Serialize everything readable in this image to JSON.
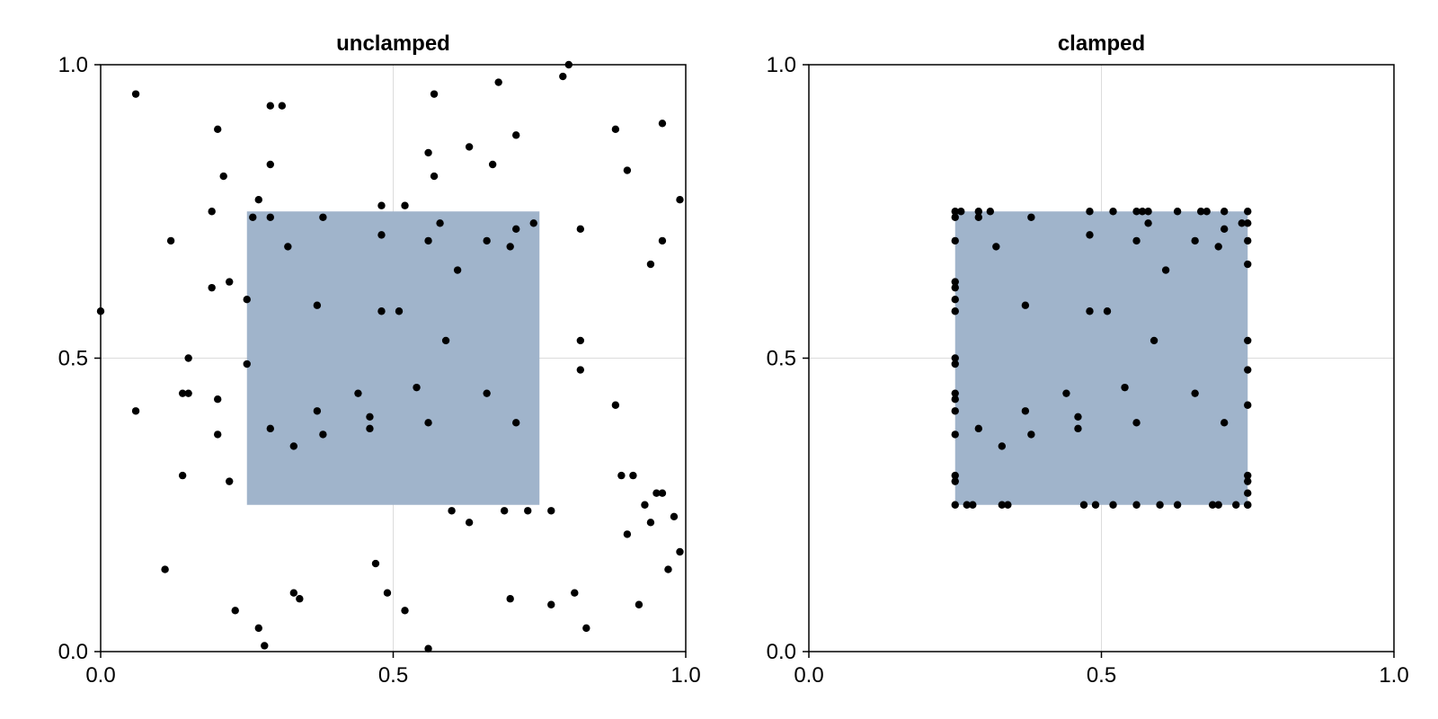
{
  "chart_data": [
    {
      "type": "scatter",
      "title": "unclamped",
      "xlabel": "",
      "ylabel": "",
      "xlim": [
        0,
        1
      ],
      "ylim": [
        0,
        1
      ],
      "x_ticks": [
        "0.0",
        "0.5",
        "1.0"
      ],
      "y_ticks": [
        "0.0",
        "0.5",
        "1.0"
      ],
      "grid": true,
      "rect": {
        "x": [
          0.25,
          0.75
        ],
        "y": [
          0.25,
          0.75
        ],
        "color": "#a0b4cb"
      },
      "marker_color": "#000000",
      "points": [
        [
          0.0,
          0.58
        ],
        [
          0.06,
          0.95
        ],
        [
          0.06,
          0.41
        ],
        [
          0.11,
          0.14
        ],
        [
          0.12,
          0.7
        ],
        [
          0.14,
          0.3
        ],
        [
          0.14,
          0.44
        ],
        [
          0.15,
          0.44
        ],
        [
          0.15,
          0.5
        ],
        [
          0.19,
          0.62
        ],
        [
          0.19,
          0.75
        ],
        [
          0.2,
          0.37
        ],
        [
          0.2,
          0.43
        ],
        [
          0.2,
          0.89
        ],
        [
          0.21,
          0.81
        ],
        [
          0.22,
          0.63
        ],
        [
          0.22,
          0.29
        ],
        [
          0.23,
          0.07
        ],
        [
          0.25,
          0.6
        ],
        [
          0.25,
          0.49
        ],
        [
          0.26,
          0.74
        ],
        [
          0.27,
          0.77
        ],
        [
          0.27,
          0.04
        ],
        [
          0.28,
          0.01
        ],
        [
          0.29,
          0.93
        ],
        [
          0.29,
          0.83
        ],
        [
          0.29,
          0.74
        ],
        [
          0.29,
          0.38
        ],
        [
          0.31,
          0.93
        ],
        [
          0.32,
          0.69
        ],
        [
          0.33,
          0.35
        ],
        [
          0.33,
          0.1
        ],
        [
          0.34,
          0.09
        ],
        [
          0.37,
          0.59
        ],
        [
          0.37,
          0.41
        ],
        [
          0.38,
          0.74
        ],
        [
          0.38,
          0.37
        ],
        [
          0.44,
          0.44
        ],
        [
          0.46,
          0.4
        ],
        [
          0.46,
          0.38
        ],
        [
          0.47,
          0.15
        ],
        [
          0.48,
          0.76
        ],
        [
          0.48,
          0.71
        ],
        [
          0.48,
          0.58
        ],
        [
          0.49,
          0.1
        ],
        [
          0.51,
          0.58
        ],
        [
          0.52,
          0.76
        ],
        [
          0.52,
          0.07
        ],
        [
          0.54,
          0.45
        ],
        [
          0.56,
          0.85
        ],
        [
          0.56,
          0.7
        ],
        [
          0.56,
          0.39
        ],
        [
          0.56,
          0.005
        ],
        [
          0.57,
          0.81
        ],
        [
          0.57,
          0.95
        ],
        [
          0.58,
          0.73
        ],
        [
          0.59,
          0.53
        ],
        [
          0.6,
          0.24
        ],
        [
          0.61,
          0.65
        ],
        [
          0.63,
          0.86
        ],
        [
          0.63,
          0.22
        ],
        [
          0.66,
          0.7
        ],
        [
          0.66,
          0.44
        ],
        [
          0.67,
          0.83
        ],
        [
          0.68,
          0.97
        ],
        [
          0.69,
          0.24
        ],
        [
          0.7,
          0.09
        ],
        [
          0.7,
          0.69
        ],
        [
          0.71,
          0.72
        ],
        [
          0.71,
          0.39
        ],
        [
          0.71,
          0.88
        ],
        [
          0.73,
          0.24
        ],
        [
          0.74,
          0.73
        ],
        [
          0.77,
          0.08
        ],
        [
          0.77,
          0.24
        ],
        [
          0.79,
          0.98
        ],
        [
          0.8,
          1.0
        ],
        [
          0.81,
          0.1
        ],
        [
          0.82,
          0.53
        ],
        [
          0.82,
          0.48
        ],
        [
          0.82,
          0.72
        ],
        [
          0.83,
          0.04
        ],
        [
          0.88,
          0.89
        ],
        [
          0.88,
          0.42
        ],
        [
          0.89,
          0.3
        ],
        [
          0.9,
          0.82
        ],
        [
          0.9,
          0.2
        ],
        [
          0.91,
          0.3
        ],
        [
          0.92,
          0.08
        ],
        [
          0.93,
          0.25
        ],
        [
          0.94,
          0.66
        ],
        [
          0.94,
          0.22
        ],
        [
          0.95,
          0.27
        ],
        [
          0.96,
          0.27
        ],
        [
          0.96,
          0.7
        ],
        [
          0.96,
          0.9
        ],
        [
          0.97,
          0.14
        ],
        [
          0.98,
          0.23
        ],
        [
          0.99,
          0.77
        ],
        [
          0.99,
          0.17
        ]
      ]
    },
    {
      "type": "scatter",
      "title": "clamped",
      "xlabel": "",
      "ylabel": "",
      "xlim": [
        0,
        1
      ],
      "ylim": [
        0,
        1
      ],
      "x_ticks": [
        "0.0",
        "0.5",
        "1.0"
      ],
      "y_ticks": [
        "0.0",
        "0.5",
        "1.0"
      ],
      "grid": true,
      "rect": {
        "x": [
          0.25,
          0.75
        ],
        "y": [
          0.25,
          0.75
        ],
        "color": "#a0b4cb"
      },
      "marker_color": "#000000",
      "points": [
        [
          0.25,
          0.75
        ],
        [
          0.25,
          0.74
        ],
        [
          0.25,
          0.7
        ],
        [
          0.25,
          0.63
        ],
        [
          0.25,
          0.62
        ],
        [
          0.25,
          0.6
        ],
        [
          0.25,
          0.58
        ],
        [
          0.25,
          0.5
        ],
        [
          0.25,
          0.49
        ],
        [
          0.25,
          0.44
        ],
        [
          0.25,
          0.43
        ],
        [
          0.25,
          0.41
        ],
        [
          0.25,
          0.37
        ],
        [
          0.25,
          0.3
        ],
        [
          0.25,
          0.29
        ],
        [
          0.25,
          0.25
        ],
        [
          0.26,
          0.75
        ],
        [
          0.27,
          0.25
        ],
        [
          0.28,
          0.25
        ],
        [
          0.29,
          0.75
        ],
        [
          0.29,
          0.74
        ],
        [
          0.29,
          0.38
        ],
        [
          0.31,
          0.75
        ],
        [
          0.32,
          0.69
        ],
        [
          0.33,
          0.35
        ],
        [
          0.33,
          0.25
        ],
        [
          0.34,
          0.25
        ],
        [
          0.37,
          0.59
        ],
        [
          0.37,
          0.41
        ],
        [
          0.38,
          0.74
        ],
        [
          0.38,
          0.37
        ],
        [
          0.44,
          0.44
        ],
        [
          0.46,
          0.4
        ],
        [
          0.46,
          0.38
        ],
        [
          0.47,
          0.25
        ],
        [
          0.48,
          0.75
        ],
        [
          0.48,
          0.71
        ],
        [
          0.48,
          0.58
        ],
        [
          0.49,
          0.25
        ],
        [
          0.51,
          0.58
        ],
        [
          0.52,
          0.75
        ],
        [
          0.52,
          0.25
        ],
        [
          0.54,
          0.45
        ],
        [
          0.56,
          0.75
        ],
        [
          0.56,
          0.7
        ],
        [
          0.56,
          0.39
        ],
        [
          0.56,
          0.25
        ],
        [
          0.57,
          0.75
        ],
        [
          0.58,
          0.75
        ],
        [
          0.58,
          0.73
        ],
        [
          0.59,
          0.53
        ],
        [
          0.6,
          0.25
        ],
        [
          0.61,
          0.65
        ],
        [
          0.63,
          0.75
        ],
        [
          0.63,
          0.25
        ],
        [
          0.66,
          0.7
        ],
        [
          0.66,
          0.44
        ],
        [
          0.67,
          0.75
        ],
        [
          0.68,
          0.75
        ],
        [
          0.69,
          0.25
        ],
        [
          0.7,
          0.25
        ],
        [
          0.7,
          0.69
        ],
        [
          0.71,
          0.72
        ],
        [
          0.71,
          0.39
        ],
        [
          0.71,
          0.75
        ],
        [
          0.73,
          0.25
        ],
        [
          0.74,
          0.73
        ],
        [
          0.75,
          0.75
        ],
        [
          0.75,
          0.73
        ],
        [
          0.75,
          0.7
        ],
        [
          0.75,
          0.66
        ],
        [
          0.75,
          0.53
        ],
        [
          0.75,
          0.48
        ],
        [
          0.75,
          0.42
        ],
        [
          0.75,
          0.3
        ],
        [
          0.75,
          0.29
        ],
        [
          0.75,
          0.27
        ],
        [
          0.75,
          0.25
        ],
        [
          0.75,
          0.25
        ]
      ]
    }
  ]
}
